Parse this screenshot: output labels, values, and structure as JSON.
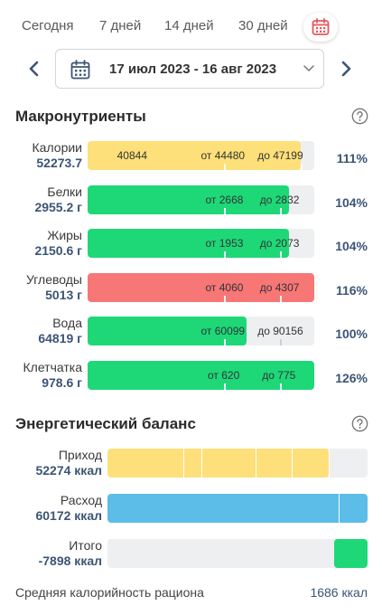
{
  "periods": [
    "Сегодня",
    "7 дней",
    "14 дней",
    "30 дней"
  ],
  "date_range": "17 июл 2023 - 16 авг 2023",
  "macro_title": "Макронутриенты",
  "macros": [
    {
      "name": "Калории",
      "total": "52273.7",
      "color": "#fde07a",
      "fill": 0.94,
      "ticks": [
        0.6,
        0.94
      ],
      "labels": [
        {
          "text": "40844",
          "at": 0.13
        },
        {
          "text": "от 44480",
          "at": 0.5
        },
        {
          "text": "до 47199",
          "at": 0.75
        }
      ],
      "percent": "111%"
    },
    {
      "name": "Белки",
      "total": "2955.2 г",
      "color": "#1ed878",
      "fill": 0.89,
      "ticks": [
        0.6,
        0.85
      ],
      "labels": [
        {
          "text": "от 2668",
          "at": 0.52
        },
        {
          "text": "до 2832",
          "at": 0.76
        }
      ],
      "percent": "104%"
    },
    {
      "name": "Жиры",
      "total": "2150.6 г",
      "color": "#1ed878",
      "fill": 0.89,
      "ticks": [
        0.6,
        0.85
      ],
      "labels": [
        {
          "text": "от 1953",
          "at": 0.52
        },
        {
          "text": "до 2073",
          "at": 0.76
        }
      ],
      "percent": "104%"
    },
    {
      "name": "Углеводы",
      "total": "5013 г",
      "color": "#f77676",
      "fill": 1.0,
      "ticks": [
        0.6,
        0.85
      ],
      "labels": [
        {
          "text": "от 4060",
          "at": 0.52
        },
        {
          "text": "до 4307",
          "at": 0.76
        }
      ],
      "percent": "116%"
    },
    {
      "name": "Вода",
      "total": "64819 г",
      "color": "#1ed878",
      "fill": 0.7,
      "ticks": [
        0.6,
        0.85
      ],
      "labels": [
        {
          "text": "от 60099",
          "at": 0.5
        },
        {
          "text": "до 90156",
          "at": 0.75
        }
      ],
      "percent": "100%"
    },
    {
      "name": "Клетчатка",
      "total": "978.6 г",
      "color": "#1ed878",
      "fill": 1.0,
      "ticks": [
        0.6,
        0.85
      ],
      "labels": [
        {
          "text": "от 620",
          "at": 0.53
        },
        {
          "text": "до 775",
          "at": 0.77
        }
      ],
      "percent": "126%"
    }
  ],
  "balance_title": "Энергетический баланс",
  "balance": [
    {
      "name": "Приход",
      "total": "52274 ккал",
      "color": "#fde07a",
      "start": 0.0,
      "fill": 0.85,
      "separators": [
        0.29,
        0.36,
        0.57,
        0.71,
        0.85
      ]
    },
    {
      "name": "Расход",
      "total": "60172 ккал",
      "color": "#5bbde8",
      "start": 0.0,
      "fill": 1.0,
      "separators": [
        0.89
      ]
    },
    {
      "name": "Итого",
      "total": "-7898 ккал",
      "color": "#1ed878",
      "start": 0.87,
      "fill": 0.13,
      "separators": []
    }
  ],
  "footer": {
    "label": "Средняя калорийность рациона",
    "value": "1686 ккал"
  }
}
